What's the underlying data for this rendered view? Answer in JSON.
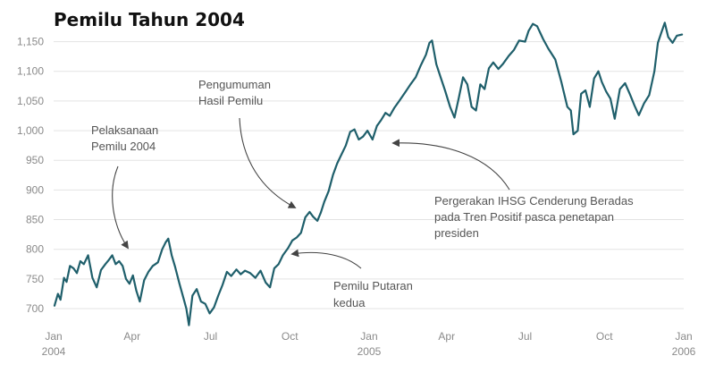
{
  "chart_data": {
    "type": "line",
    "title": "Pemilu Tahun 2004",
    "xlabel": "",
    "ylabel": "",
    "ylim": [
      685,
      1175
    ],
    "yticks": [
      "1,150",
      "1,100",
      "1,050",
      "1,000",
      "950",
      "900",
      "850",
      "800",
      "750",
      "700"
    ],
    "ytick_values": [
      1150,
      1100,
      1050,
      1000,
      950,
      900,
      850,
      800,
      750,
      700
    ],
    "xticks": [
      {
        "label": "Jan",
        "year": "2004",
        "date": "2004-01-01"
      },
      {
        "label": "Apr",
        "year": "",
        "date": "2004-04-01"
      },
      {
        "label": "Jul",
        "year": "",
        "date": "2004-07-01"
      },
      {
        "label": "Oct",
        "year": "",
        "date": "2004-10-01"
      },
      {
        "label": "Jan",
        "year": "2005",
        "date": "2005-01-01"
      },
      {
        "label": "Apr",
        "year": "",
        "date": "2005-04-01"
      },
      {
        "label": "Jul",
        "year": "",
        "date": "2005-07-01"
      },
      {
        "label": "Oct",
        "year": "",
        "date": "2005-10-01"
      },
      {
        "label": "Jan",
        "year": "2006",
        "date": "2006-01-01"
      }
    ],
    "grid": true,
    "line_color": "#1f5f6b",
    "series": [
      {
        "points": [
          [
            "2004-01-02",
            705
          ],
          [
            "2004-01-06",
            725
          ],
          [
            "2004-01-09",
            715
          ],
          [
            "2004-01-13",
            752
          ],
          [
            "2004-01-16",
            745
          ],
          [
            "2004-01-20",
            772
          ],
          [
            "2004-01-24",
            768
          ],
          [
            "2004-01-28",
            760
          ],
          [
            "2004-02-01",
            780
          ],
          [
            "2004-02-05",
            775
          ],
          [
            "2004-02-10",
            790
          ],
          [
            "2004-02-15",
            752
          ],
          [
            "2004-02-20",
            736
          ],
          [
            "2004-02-25",
            765
          ],
          [
            "2004-03-01",
            775
          ],
          [
            "2004-03-05",
            782
          ],
          [
            "2004-03-09",
            790
          ],
          [
            "2004-03-13",
            775
          ],
          [
            "2004-03-17",
            780
          ],
          [
            "2004-03-21",
            772
          ],
          [
            "2004-03-25",
            750
          ],
          [
            "2004-03-29",
            742
          ],
          [
            "2004-04-02",
            756
          ],
          [
            "2004-04-06",
            730
          ],
          [
            "2004-04-10",
            712
          ],
          [
            "2004-04-15",
            748
          ],
          [
            "2004-04-20",
            762
          ],
          [
            "2004-04-25",
            772
          ],
          [
            "2004-05-01",
            778
          ],
          [
            "2004-05-06",
            800
          ],
          [
            "2004-05-10",
            812
          ],
          [
            "2004-05-13",
            818
          ],
          [
            "2004-05-17",
            790
          ],
          [
            "2004-05-21",
            770
          ],
          [
            "2004-05-26",
            742
          ],
          [
            "2004-05-31",
            716
          ],
          [
            "2004-06-03",
            700
          ],
          [
            "2004-06-06",
            672
          ],
          [
            "2004-06-10",
            722
          ],
          [
            "2004-06-15",
            733
          ],
          [
            "2004-06-20",
            712
          ],
          [
            "2004-06-25",
            708
          ],
          [
            "2004-06-30",
            692
          ],
          [
            "2004-07-05",
            702
          ],
          [
            "2004-07-10",
            722
          ],
          [
            "2004-07-15",
            740
          ],
          [
            "2004-07-20",
            762
          ],
          [
            "2004-07-25",
            755
          ],
          [
            "2004-07-31",
            766
          ],
          [
            "2004-08-05",
            758
          ],
          [
            "2004-08-10",
            764
          ],
          [
            "2004-08-16",
            760
          ],
          [
            "2004-08-22",
            752
          ],
          [
            "2004-08-28",
            764
          ],
          [
            "2004-09-03",
            744
          ],
          [
            "2004-09-08",
            736
          ],
          [
            "2004-09-13",
            768
          ],
          [
            "2004-09-18",
            775
          ],
          [
            "2004-09-23",
            790
          ],
          [
            "2004-09-29",
            802
          ],
          [
            "2004-10-04",
            815
          ],
          [
            "2004-10-09",
            820
          ],
          [
            "2004-10-14",
            828
          ],
          [
            "2004-10-19",
            854
          ],
          [
            "2004-10-24",
            863
          ],
          [
            "2004-10-28",
            855
          ],
          [
            "2004-11-02",
            848
          ],
          [
            "2004-11-06",
            862
          ],
          [
            "2004-11-10",
            880
          ],
          [
            "2004-11-15",
            898
          ],
          [
            "2004-11-20",
            925
          ],
          [
            "2004-11-25",
            945
          ],
          [
            "2004-11-30",
            960
          ],
          [
            "2004-12-05",
            975
          ],
          [
            "2004-12-10",
            998
          ],
          [
            "2004-12-15",
            1002
          ],
          [
            "2004-12-20",
            985
          ],
          [
            "2004-12-25",
            990
          ],
          [
            "2004-12-30",
            1000
          ],
          [
            "2005-01-05",
            985
          ],
          [
            "2005-01-10",
            1008
          ],
          [
            "2005-01-15",
            1018
          ],
          [
            "2005-01-20",
            1030
          ],
          [
            "2005-01-25",
            1025
          ],
          [
            "2005-01-30",
            1038
          ],
          [
            "2005-02-05",
            1050
          ],
          [
            "2005-02-12",
            1065
          ],
          [
            "2005-02-18",
            1078
          ],
          [
            "2005-02-24",
            1090
          ],
          [
            "2005-03-02",
            1110
          ],
          [
            "2005-03-08",
            1128
          ],
          [
            "2005-03-12",
            1148
          ],
          [
            "2005-03-15",
            1152
          ],
          [
            "2005-03-20",
            1112
          ],
          [
            "2005-03-25",
            1090
          ],
          [
            "2005-03-30",
            1068
          ],
          [
            "2005-04-05",
            1040
          ],
          [
            "2005-04-10",
            1022
          ],
          [
            "2005-04-15",
            1055
          ],
          [
            "2005-04-20",
            1090
          ],
          [
            "2005-04-25",
            1078
          ],
          [
            "2005-04-30",
            1040
          ],
          [
            "2005-05-05",
            1034
          ],
          [
            "2005-05-10",
            1078
          ],
          [
            "2005-05-15",
            1070
          ],
          [
            "2005-05-20",
            1105
          ],
          [
            "2005-05-25",
            1115
          ],
          [
            "2005-05-31",
            1104
          ],
          [
            "2005-06-05",
            1112
          ],
          [
            "2005-06-12",
            1126
          ],
          [
            "2005-06-18",
            1136
          ],
          [
            "2005-06-24",
            1152
          ],
          [
            "2005-07-01",
            1150
          ],
          [
            "2005-07-05",
            1168
          ],
          [
            "2005-07-10",
            1180
          ],
          [
            "2005-07-15",
            1176
          ],
          [
            "2005-07-22",
            1154
          ],
          [
            "2005-07-28",
            1138
          ],
          [
            "2005-08-05",
            1120
          ],
          [
            "2005-08-12",
            1082
          ],
          [
            "2005-08-19",
            1040
          ],
          [
            "2005-08-23",
            1034
          ],
          [
            "2005-08-26",
            994
          ],
          [
            "2005-08-31",
            1000
          ],
          [
            "2005-09-04",
            1062
          ],
          [
            "2005-09-09",
            1068
          ],
          [
            "2005-09-14",
            1040
          ],
          [
            "2005-09-19",
            1088
          ],
          [
            "2005-09-24",
            1100
          ],
          [
            "2005-09-28",
            1082
          ],
          [
            "2005-10-03",
            1066
          ],
          [
            "2005-10-08",
            1054
          ],
          [
            "2005-10-13",
            1020
          ],
          [
            "2005-10-19",
            1070
          ],
          [
            "2005-10-25",
            1080
          ],
          [
            "2005-10-31",
            1060
          ],
          [
            "2005-11-05",
            1042
          ],
          [
            "2005-11-10",
            1026
          ],
          [
            "2005-11-16",
            1046
          ],
          [
            "2005-11-22",
            1060
          ],
          [
            "2005-11-28",
            1100
          ],
          [
            "2005-12-02",
            1148
          ],
          [
            "2005-12-06",
            1165
          ],
          [
            "2005-12-10",
            1182
          ],
          [
            "2005-12-14",
            1158
          ],
          [
            "2005-12-19",
            1148
          ],
          [
            "2005-12-24",
            1160
          ],
          [
            "2005-12-30",
            1162
          ]
        ]
      }
    ],
    "annotations": [
      {
        "lines": [
          "Pelaksanaan",
          "Pemilu 2004"
        ]
      },
      {
        "lines": [
          "Pengumuman",
          "Hasil Pemilu"
        ]
      },
      {
        "lines": [
          "Pemilu Putaran",
          "kedua"
        ]
      },
      {
        "lines": [
          "Pergerakan IHSG Cenderung Beradas",
          "pada Tren Positif pasca penetapan",
          "presiden"
        ]
      }
    ]
  }
}
